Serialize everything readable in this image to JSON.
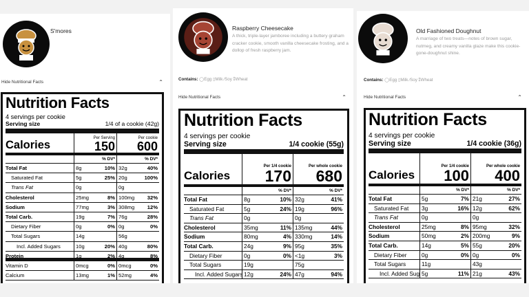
{
  "cards": [
    {
      "name": "S'mores",
      "description": "",
      "contains_label": "",
      "allergens": [],
      "toggle_label": "Hide Nutritional Facts",
      "facts": {
        "title": "Nutrition Facts",
        "servings": "4 servings per cookie",
        "serving_size_label": "Serving size",
        "serving_size_value": "1/4 of a cookie (42g)",
        "calories_label": "Calories",
        "col1_header": "Per Serving",
        "col2_header": "Per cookie",
        "calories": [
          "150",
          "600"
        ],
        "dv_header": [
          "% DV*",
          "% DV*"
        ],
        "rows": [
          {
            "name": "Total Fat",
            "style": "bold",
            "v1": "8g",
            "p1": "10%",
            "v2": "32g",
            "p2": "40%"
          },
          {
            "name": "Saturated Fat",
            "style": "ind1",
            "v1": "5g",
            "p1": "25%",
            "v2": "20g",
            "p2": "100%"
          },
          {
            "name": "Trans Fat",
            "style": "ind1 ital",
            "v1": "0g",
            "p1": "",
            "v2": "0g",
            "p2": ""
          },
          {
            "name": "Cholesterol",
            "style": "bold",
            "v1": "25mg",
            "p1": "8%",
            "v2": "100mg",
            "p2": "32%"
          },
          {
            "name": "Sodium",
            "style": "bold",
            "v1": "77mg",
            "p1": "3%",
            "v2": "308mg",
            "p2": "12%"
          },
          {
            "name": "Total Carb.",
            "style": "bold",
            "v1": "19g",
            "p1": "7%",
            "v2": "76g",
            "p2": "28%"
          },
          {
            "name": "Dietary Fiber",
            "style": "ind1",
            "v1": "0g",
            "p1": "0%",
            "v2": "0g",
            "p2": "0%"
          },
          {
            "name": "Total Sugars",
            "style": "ind1",
            "v1": "14g",
            "p1": "",
            "v2": "56g",
            "p2": ""
          },
          {
            "name": "Incl. Added Sugars",
            "style": "ind2",
            "v1": "10g",
            "p1": "20%",
            "v2": "40g",
            "p2": "80%"
          },
          {
            "name": "Protein",
            "style": "bold thick",
            "v1": "1g",
            "p1": "2%",
            "v2": "4g",
            "p2": "8%"
          },
          {
            "name": "Vitamin D",
            "style": "",
            "v1": "0mcg",
            "p1": "0%",
            "v2": "0mcg",
            "p2": "0%"
          },
          {
            "name": "Calcium",
            "style": "",
            "v1": "13mg",
            "p1": "1%",
            "v2": "52mg",
            "p2": "4%"
          }
        ]
      }
    },
    {
      "name": "Raspberry Cheesecake",
      "description": "A thick, triple-layer jamboree including a buttery graham cracker cookie, smooth vanilla cheesecake frosting, and a dollop of fresh raspberry jam.",
      "contains_label": "Contains:",
      "allergens": [
        "Egg",
        "Milk",
        "Soy",
        "Wheat"
      ],
      "toggle_label": "Hide Nutritional Facts",
      "facts": {
        "title": "Nutrition Facts",
        "servings": "4 servings per cookie",
        "serving_size_label": "Serving size",
        "serving_size_value": "1/4 cookie (55g)",
        "calories_label": "Calories",
        "col1_header": "Per 1/4 cookie",
        "col2_header": "Per whole cookie",
        "calories": [
          "170",
          "680"
        ],
        "dv_header": [
          "% DV*",
          "% DV*"
        ],
        "rows": [
          {
            "name": "Total Fat",
            "style": "bold",
            "v1": "8g",
            "p1": "10%",
            "v2": "32g",
            "p2": "41%"
          },
          {
            "name": "Saturated Fat",
            "style": "ind1",
            "v1": "5g",
            "p1": "24%",
            "v2": "19g",
            "p2": "96%"
          },
          {
            "name": "Trans Fat",
            "style": "ind1 ital",
            "v1": "0g",
            "p1": "",
            "v2": "0g",
            "p2": ""
          },
          {
            "name": "Cholesterol",
            "style": "bold",
            "v1": "35mg",
            "p1": "11%",
            "v2": "135mg",
            "p2": "44%"
          },
          {
            "name": "Sodium",
            "style": "bold",
            "v1": "80mg",
            "p1": "4%",
            "v2": "330mg",
            "p2": "14%"
          },
          {
            "name": "Total Carb.",
            "style": "bold",
            "v1": "24g",
            "p1": "9%",
            "v2": "95g",
            "p2": "35%"
          },
          {
            "name": "Dietary Fiber",
            "style": "ind1",
            "v1": "0g",
            "p1": "0%",
            "v2": "<1g",
            "p2": "3%"
          },
          {
            "name": "Total Sugars",
            "style": "ind1",
            "v1": "19g",
            "p1": "",
            "v2": "75g",
            "p2": ""
          },
          {
            "name": "Incl. Added Sugars",
            "style": "ind2",
            "v1": "12g",
            "p1": "24%",
            "v2": "47g",
            "p2": "94%"
          }
        ]
      }
    },
    {
      "name": "Old Fashioned Doughnut",
      "description": "A marriage of two treats—notes of brown sugar, nutmeg, and creamy vanilla glaze make this cookie-gone-doughnut shine.",
      "contains_label": "Contains:",
      "allergens": [
        "Egg",
        "Milk",
        "Soy",
        "Wheat"
      ],
      "toggle_label": "Hide Nutritional Facts",
      "facts": {
        "title": "Nutrition Facts",
        "servings": "4 servings per cookie",
        "serving_size_label": "Serving size",
        "serving_size_value": "1/4 cookie (36g)",
        "calories_label": "Calories",
        "col1_header": "Per 1/4 cookie",
        "col2_header": "Per whole cookie",
        "calories": [
          "100",
          "400"
        ],
        "dv_header": [
          "% DV*",
          "% DV*"
        ],
        "rows": [
          {
            "name": "Total Fat",
            "style": "bold",
            "v1": "5g",
            "p1": "7%",
            "v2": "21g",
            "p2": "27%"
          },
          {
            "name": "Saturated Fat",
            "style": "ind1",
            "v1": "3g",
            "p1": "16%",
            "v2": "12g",
            "p2": "62%"
          },
          {
            "name": "Trans Fat",
            "style": "ind1 ital",
            "v1": "0g",
            "p1": "",
            "v2": "0g",
            "p2": ""
          },
          {
            "name": "Cholesterol",
            "style": "bold",
            "v1": "25mg",
            "p1": "8%",
            "v2": "95mg",
            "p2": "32%"
          },
          {
            "name": "Sodium",
            "style": "bold",
            "v1": "50mg",
            "p1": "2%",
            "v2": "200mg",
            "p2": "9%"
          },
          {
            "name": "Total Carb.",
            "style": "bold",
            "v1": "14g",
            "p1": "5%",
            "v2": "55g",
            "p2": "20%"
          },
          {
            "name": "Dietary Fiber",
            "style": "ind1",
            "v1": "0g",
            "p1": "0%",
            "v2": "0g",
            "p2": "0%"
          },
          {
            "name": "Total Sugars",
            "style": "ind1",
            "v1": "11g",
            "p1": "",
            "v2": "43g",
            "p2": ""
          },
          {
            "name": "Incl. Added Sugars",
            "style": "ind2",
            "v1": "5g",
            "p1": "11%",
            "v2": "21g",
            "p2": "43%"
          }
        ]
      }
    }
  ],
  "icons": {
    "toggle": "chevron-up-icon",
    "avatar": "chef-cookie-icon"
  },
  "colors": {
    "avatar_bg": "#0b0b0b",
    "smores_cookie": "#c8913f",
    "raspberry_cookie": "#a64434",
    "doughnut_cookie": "#e8dcd2"
  }
}
